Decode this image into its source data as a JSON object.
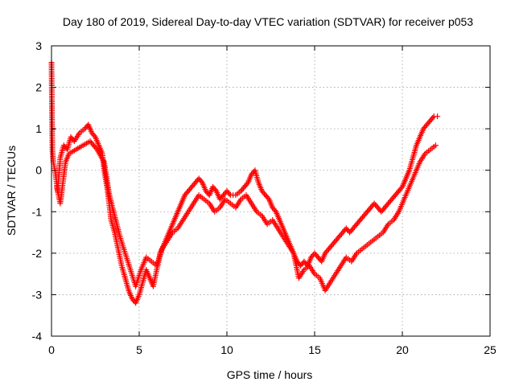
{
  "chart_data": {
    "type": "scatter",
    "title": "Day 180 of 2019, Sidereal Day-to-day VTEC variation (SDTVAR) for receiver p053",
    "xlabel": "GPS time / hours",
    "ylabel": "SDTVAR / TECUs",
    "xlim": [
      0,
      25
    ],
    "ylim": [
      -4,
      3
    ],
    "xticks": [
      0,
      5,
      10,
      15,
      20,
      25
    ],
    "yticks": [
      -4,
      -3,
      -2,
      -1,
      0,
      1,
      2,
      3
    ],
    "xtick_labels": [
      "0",
      "5",
      "10",
      "15",
      "20",
      "25"
    ],
    "ytick_labels": [
      "-4",
      "-3",
      "-2",
      "-1",
      "0",
      "1",
      "2",
      "3"
    ],
    "grid": true,
    "marker": "plus",
    "series": [
      {
        "name": "main",
        "color": "#ff0000",
        "x": [
          0,
          0.05,
          0.1,
          0.2,
          0.35,
          0.5,
          0.7,
          0.9,
          1.1,
          1.3,
          1.6,
          1.9,
          2.1,
          2.3,
          2.5,
          2.7,
          2.9,
          3.0,
          3.2,
          3.4,
          3.6,
          3.8,
          4.0,
          4.2,
          4.4,
          4.6,
          4.8,
          5.0,
          5.2,
          5.4,
          5.6,
          5.8,
          6.0,
          6.2,
          6.4,
          6.6,
          6.8,
          7.0,
          7.2,
          7.4,
          7.6,
          7.8,
          8.0,
          8.2,
          8.4,
          8.6,
          8.8,
          9.0,
          9.2,
          9.4,
          9.6,
          9.8,
          10.0,
          10.2,
          10.5,
          10.8,
          11.0,
          11.2,
          11.4,
          11.6,
          11.8,
          12.0,
          12.2,
          12.4,
          12.6,
          12.8,
          13.0,
          13.2,
          13.4,
          13.6,
          13.8,
          14.0,
          14.2,
          14.4,
          14.6,
          14.8,
          15.0,
          15.2,
          15.4,
          15.6,
          15.8,
          16.0,
          16.2,
          16.4,
          16.6,
          16.8,
          17.0,
          17.2,
          17.4,
          17.6,
          17.8,
          18.0,
          18.2,
          18.4,
          18.6,
          18.8,
          19.0,
          19.2,
          19.4,
          19.6,
          19.8,
          20.0,
          20.2,
          20.4,
          20.6,
          20.8,
          21.0,
          21.2,
          21.4,
          21.6,
          21.8,
          22.0
        ],
        "y": [
          2.6,
          0.5,
          0.2,
          0.0,
          -0.5,
          0.3,
          0.6,
          0.5,
          0.8,
          0.7,
          0.9,
          1.0,
          1.1,
          0.9,
          0.8,
          0.6,
          0.4,
          0.0,
          -0.5,
          -1.2,
          -1.5,
          -1.9,
          -2.3,
          -2.6,
          -2.9,
          -3.1,
          -3.2,
          -3.0,
          -2.7,
          -2.4,
          -2.6,
          -2.8,
          -2.4,
          -2.0,
          -1.8,
          -1.6,
          -1.4,
          -1.2,
          -1.0,
          -0.8,
          -0.6,
          -0.5,
          -0.4,
          -0.3,
          -0.2,
          -0.3,
          -0.5,
          -0.6,
          -0.4,
          -0.5,
          -0.7,
          -0.6,
          -0.5,
          -0.6,
          -0.6,
          -0.5,
          -0.4,
          -0.3,
          -0.1,
          0.0,
          -0.3,
          -0.5,
          -0.6,
          -0.7,
          -0.9,
          -1.0,
          -1.2,
          -1.4,
          -1.6,
          -1.8,
          -2.0,
          -2.2,
          -2.3,
          -2.2,
          -2.3,
          -2.1,
          -2.0,
          -2.1,
          -2.2,
          -2.0,
          -1.9,
          -1.8,
          -1.7,
          -1.6,
          -1.5,
          -1.4,
          -1.5,
          -1.4,
          -1.3,
          -1.2,
          -1.1,
          -1.0,
          -0.9,
          -0.8,
          -0.9,
          -1.0,
          -0.9,
          -0.8,
          -0.7,
          -0.6,
          -0.5,
          -0.4,
          -0.2,
          0.0,
          0.3,
          0.6,
          0.8,
          1.0,
          1.1,
          1.2,
          1.3,
          1.3
        ]
      },
      {
        "name": "secondary",
        "color": "#ff0000",
        "x": [
          0.3,
          0.5,
          0.8,
          1.0,
          1.4,
          1.8,
          2.2,
          2.6,
          3.0,
          3.3,
          3.6,
          3.9,
          4.2,
          4.5,
          4.8,
          5.1,
          5.4,
          5.7,
          6.0,
          6.3,
          6.6,
          6.9,
          7.2,
          7.5,
          7.8,
          8.1,
          8.4,
          8.7,
          9.0,
          9.3,
          9.6,
          9.9,
          10.2,
          10.5,
          10.8,
          11.1,
          11.4,
          11.7,
          12.0,
          12.3,
          12.6,
          12.9,
          13.2,
          13.5,
          13.8,
          14.1,
          14.4,
          14.7,
          15.0,
          15.3,
          15.6,
          15.9,
          16.2,
          16.5,
          16.8,
          17.1,
          17.4,
          17.7,
          18.0,
          18.3,
          18.6,
          18.9,
          19.2,
          19.5,
          19.8,
          20.1,
          20.4,
          20.7,
          21.0,
          21.3,
          21.6,
          21.9
        ],
        "y": [
          -0.4,
          -0.8,
          0.2,
          0.4,
          0.5,
          0.6,
          0.7,
          0.5,
          0.2,
          -0.6,
          -1.1,
          -1.6,
          -2.0,
          -2.4,
          -2.8,
          -2.4,
          -2.1,
          -2.2,
          -2.3,
          -1.9,
          -1.7,
          -1.5,
          -1.4,
          -1.2,
          -1.0,
          -0.8,
          -0.6,
          -0.7,
          -0.8,
          -1.0,
          -0.9,
          -0.7,
          -0.8,
          -0.9,
          -0.7,
          -0.6,
          -0.8,
          -1.0,
          -1.1,
          -1.3,
          -1.2,
          -1.4,
          -1.6,
          -1.8,
          -2.0,
          -2.6,
          -2.4,
          -2.3,
          -2.5,
          -2.6,
          -2.9,
          -2.7,
          -2.5,
          -2.3,
          -2.1,
          -2.2,
          -2.0,
          -1.9,
          -1.8,
          -1.7,
          -1.6,
          -1.5,
          -1.3,
          -1.2,
          -1.0,
          -0.7,
          -0.4,
          -0.1,
          0.2,
          0.4,
          0.5,
          0.6
        ]
      }
    ]
  }
}
